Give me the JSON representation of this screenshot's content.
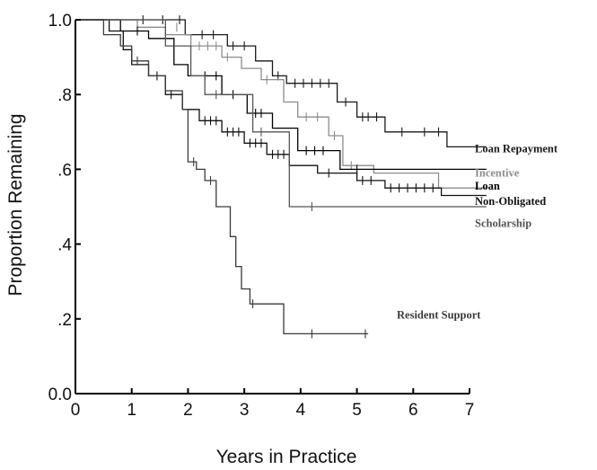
{
  "chart_data": {
    "type": "line",
    "title": "",
    "xlabel": "Years in Practice",
    "ylabel": "Proportion Remaining",
    "xlim": [
      0,
      7
    ],
    "ylim": [
      0,
      1
    ],
    "x_ticks": [
      0,
      1,
      2,
      3,
      4,
      5,
      6,
      7
    ],
    "x_tick_labels": [
      "0",
      "1",
      "2",
      "3",
      "4",
      "5",
      "6",
      "7"
    ],
    "y_ticks": [
      0,
      0.2,
      0.4,
      0.6,
      0.8,
      1.0
    ],
    "y_tick_labels": [
      "0.0",
      ".2",
      ".4",
      ".6",
      ".8",
      "1.0"
    ],
    "grid": false,
    "series": [
      {
        "name": "Loan Repayment",
        "color": "#1a1a1a",
        "label_y": 0.655,
        "steps": [
          [
            0,
            1.0
          ],
          [
            1.95,
            1.0
          ],
          [
            1.95,
            0.96
          ],
          [
            2.7,
            0.96
          ],
          [
            2.7,
            0.93
          ],
          [
            3.2,
            0.93
          ],
          [
            3.2,
            0.89
          ],
          [
            3.5,
            0.89
          ],
          [
            3.5,
            0.85
          ],
          [
            3.75,
            0.85
          ],
          [
            3.75,
            0.83
          ],
          [
            4.65,
            0.83
          ],
          [
            4.65,
            0.78
          ],
          [
            5.0,
            0.78
          ],
          [
            5.0,
            0.74
          ],
          [
            5.5,
            0.74
          ],
          [
            5.5,
            0.7
          ],
          [
            6.6,
            0.7
          ],
          [
            6.6,
            0.66
          ],
          [
            7.3,
            0.66
          ]
        ],
        "censored": [
          [
            1.2,
            1.0
          ],
          [
            1.55,
            1.0
          ],
          [
            1.85,
            1.0
          ],
          [
            2.25,
            0.96
          ],
          [
            2.45,
            0.96
          ],
          [
            2.8,
            0.93
          ],
          [
            3.0,
            0.93
          ],
          [
            3.6,
            0.85
          ],
          [
            3.9,
            0.83
          ],
          [
            4.05,
            0.83
          ],
          [
            4.2,
            0.83
          ],
          [
            4.35,
            0.83
          ],
          [
            4.5,
            0.83
          ],
          [
            4.8,
            0.78
          ],
          [
            5.1,
            0.74
          ],
          [
            5.2,
            0.74
          ],
          [
            5.35,
            0.74
          ],
          [
            5.8,
            0.7
          ],
          [
            6.2,
            0.7
          ],
          [
            6.45,
            0.7
          ]
        ]
      },
      {
        "name": "Incentive",
        "color": "#8c8c8c",
        "label_y": 0.59,
        "steps": [
          [
            0,
            1.0
          ],
          [
            1.1,
            1.0
          ],
          [
            1.1,
            0.98
          ],
          [
            1.6,
            0.98
          ],
          [
            1.6,
            0.96
          ],
          [
            2.05,
            0.96
          ],
          [
            2.05,
            0.93
          ],
          [
            2.6,
            0.93
          ],
          [
            2.6,
            0.9
          ],
          [
            2.95,
            0.9
          ],
          [
            2.95,
            0.87
          ],
          [
            3.3,
            0.87
          ],
          [
            3.3,
            0.84
          ],
          [
            3.7,
            0.84
          ],
          [
            3.7,
            0.78
          ],
          [
            3.95,
            0.78
          ],
          [
            3.95,
            0.74
          ],
          [
            4.5,
            0.74
          ],
          [
            4.5,
            0.69
          ],
          [
            4.75,
            0.69
          ],
          [
            4.75,
            0.61
          ],
          [
            5.3,
            0.61
          ],
          [
            5.3,
            0.59
          ],
          [
            6.45,
            0.59
          ],
          [
            6.45,
            0.55
          ],
          [
            7.3,
            0.55
          ]
        ],
        "censored": [
          [
            1.8,
            0.98
          ],
          [
            2.2,
            0.93
          ],
          [
            2.35,
            0.93
          ],
          [
            2.5,
            0.93
          ],
          [
            2.7,
            0.9
          ],
          [
            3.4,
            0.84
          ],
          [
            4.1,
            0.74
          ],
          [
            4.3,
            0.74
          ],
          [
            4.6,
            0.69
          ],
          [
            4.9,
            0.61
          ]
        ]
      },
      {
        "name": "Loan",
        "color": "#000000",
        "label_y": 0.555,
        "steps": [
          [
            0,
            1.0
          ],
          [
            0.8,
            1.0
          ],
          [
            0.8,
            0.97
          ],
          [
            1.3,
            0.97
          ],
          [
            1.3,
            0.95
          ],
          [
            1.75,
            0.95
          ],
          [
            1.75,
            0.88
          ],
          [
            2.0,
            0.88
          ],
          [
            2.0,
            0.85
          ],
          [
            2.6,
            0.85
          ],
          [
            2.6,
            0.8
          ],
          [
            3.05,
            0.8
          ],
          [
            3.05,
            0.75
          ],
          [
            3.5,
            0.75
          ],
          [
            3.5,
            0.71
          ],
          [
            3.95,
            0.71
          ],
          [
            3.95,
            0.65
          ],
          [
            4.7,
            0.65
          ],
          [
            4.7,
            0.6
          ],
          [
            7.3,
            0.6
          ]
        ],
        "censored": [
          [
            1.1,
            0.97
          ],
          [
            2.3,
            0.85
          ],
          [
            2.5,
            0.85
          ],
          [
            2.8,
            0.8
          ],
          [
            3.2,
            0.75
          ],
          [
            3.3,
            0.75
          ],
          [
            4.1,
            0.65
          ],
          [
            4.25,
            0.65
          ],
          [
            4.4,
            0.65
          ],
          [
            5.0,
            0.6
          ]
        ]
      },
      {
        "name": "Non-Obligated",
        "color": "#111111",
        "label_y": 0.515,
        "steps": [
          [
            0,
            1.0
          ],
          [
            0.6,
            1.0
          ],
          [
            0.6,
            0.97
          ],
          [
            0.85,
            0.97
          ],
          [
            0.85,
            0.92
          ],
          [
            1.0,
            0.92
          ],
          [
            1.0,
            0.88
          ],
          [
            1.3,
            0.88
          ],
          [
            1.3,
            0.85
          ],
          [
            1.6,
            0.85
          ],
          [
            1.6,
            0.8
          ],
          [
            1.9,
            0.8
          ],
          [
            1.9,
            0.76
          ],
          [
            2.2,
            0.76
          ],
          [
            2.2,
            0.73
          ],
          [
            2.6,
            0.73
          ],
          [
            2.6,
            0.7
          ],
          [
            3.0,
            0.7
          ],
          [
            3.0,
            0.67
          ],
          [
            3.4,
            0.67
          ],
          [
            3.4,
            0.64
          ],
          [
            3.8,
            0.64
          ],
          [
            3.8,
            0.61
          ],
          [
            4.3,
            0.61
          ],
          [
            4.3,
            0.59
          ],
          [
            5.0,
            0.59
          ],
          [
            5.0,
            0.57
          ],
          [
            5.5,
            0.57
          ],
          [
            5.5,
            0.55
          ],
          [
            6.5,
            0.55
          ],
          [
            6.5,
            0.53
          ],
          [
            7.3,
            0.53
          ]
        ],
        "censored": [
          [
            1.45,
            0.85
          ],
          [
            1.7,
            0.8
          ],
          [
            2.3,
            0.73
          ],
          [
            2.4,
            0.73
          ],
          [
            2.5,
            0.73
          ],
          [
            2.7,
            0.7
          ],
          [
            2.8,
            0.7
          ],
          [
            2.9,
            0.7
          ],
          [
            3.1,
            0.67
          ],
          [
            3.2,
            0.67
          ],
          [
            3.3,
            0.67
          ],
          [
            3.5,
            0.64
          ],
          [
            3.6,
            0.64
          ],
          [
            3.7,
            0.64
          ],
          [
            4.5,
            0.59
          ],
          [
            5.1,
            0.57
          ],
          [
            5.25,
            0.57
          ],
          [
            5.6,
            0.55
          ],
          [
            5.75,
            0.55
          ],
          [
            5.9,
            0.55
          ],
          [
            6.05,
            0.55
          ],
          [
            6.2,
            0.55
          ],
          [
            6.35,
            0.55
          ]
        ]
      },
      {
        "name": "Scholarship",
        "color": "#555555",
        "label_y": 0.455,
        "steps": [
          [
            0,
            1.0
          ],
          [
            1.6,
            1.0
          ],
          [
            1.6,
            0.93
          ],
          [
            2.05,
            0.93
          ],
          [
            2.05,
            0.85
          ],
          [
            2.3,
            0.85
          ],
          [
            2.3,
            0.8
          ],
          [
            3.15,
            0.8
          ],
          [
            3.15,
            0.7
          ],
          [
            3.8,
            0.7
          ],
          [
            3.8,
            0.5
          ],
          [
            7.3,
            0.5
          ]
        ],
        "censored": [
          [
            2.5,
            0.8
          ],
          [
            3.3,
            0.7
          ],
          [
            4.2,
            0.5
          ]
        ]
      },
      {
        "name": "Resident Support",
        "color": "#3a3a3a",
        "label_y": 0.21,
        "steps": [
          [
            0,
            1.0
          ],
          [
            0.5,
            1.0
          ],
          [
            0.5,
            0.96
          ],
          [
            0.8,
            0.96
          ],
          [
            0.8,
            0.93
          ],
          [
            1.0,
            0.93
          ],
          [
            1.0,
            0.89
          ],
          [
            1.3,
            0.89
          ],
          [
            1.3,
            0.85
          ],
          [
            1.6,
            0.85
          ],
          [
            1.6,
            0.81
          ],
          [
            1.9,
            0.81
          ],
          [
            1.9,
            0.76
          ],
          [
            2.0,
            0.76
          ],
          [
            2.0,
            0.62
          ],
          [
            2.15,
            0.62
          ],
          [
            2.15,
            0.6
          ],
          [
            2.3,
            0.6
          ],
          [
            2.3,
            0.57
          ],
          [
            2.5,
            0.57
          ],
          [
            2.5,
            0.5
          ],
          [
            2.75,
            0.5
          ],
          [
            2.75,
            0.42
          ],
          [
            2.85,
            0.42
          ],
          [
            2.85,
            0.34
          ],
          [
            2.95,
            0.34
          ],
          [
            2.95,
            0.28
          ],
          [
            3.1,
            0.28
          ],
          [
            3.1,
            0.24
          ],
          [
            3.7,
            0.24
          ],
          [
            3.7,
            0.16
          ],
          [
            5.2,
            0.16
          ]
        ],
        "censored": [
          [
            1.1,
            0.89
          ],
          [
            2.1,
            0.62
          ],
          [
            2.4,
            0.57
          ],
          [
            3.15,
            0.24
          ],
          [
            4.2,
            0.16
          ],
          [
            5.15,
            0.16
          ]
        ]
      }
    ]
  }
}
